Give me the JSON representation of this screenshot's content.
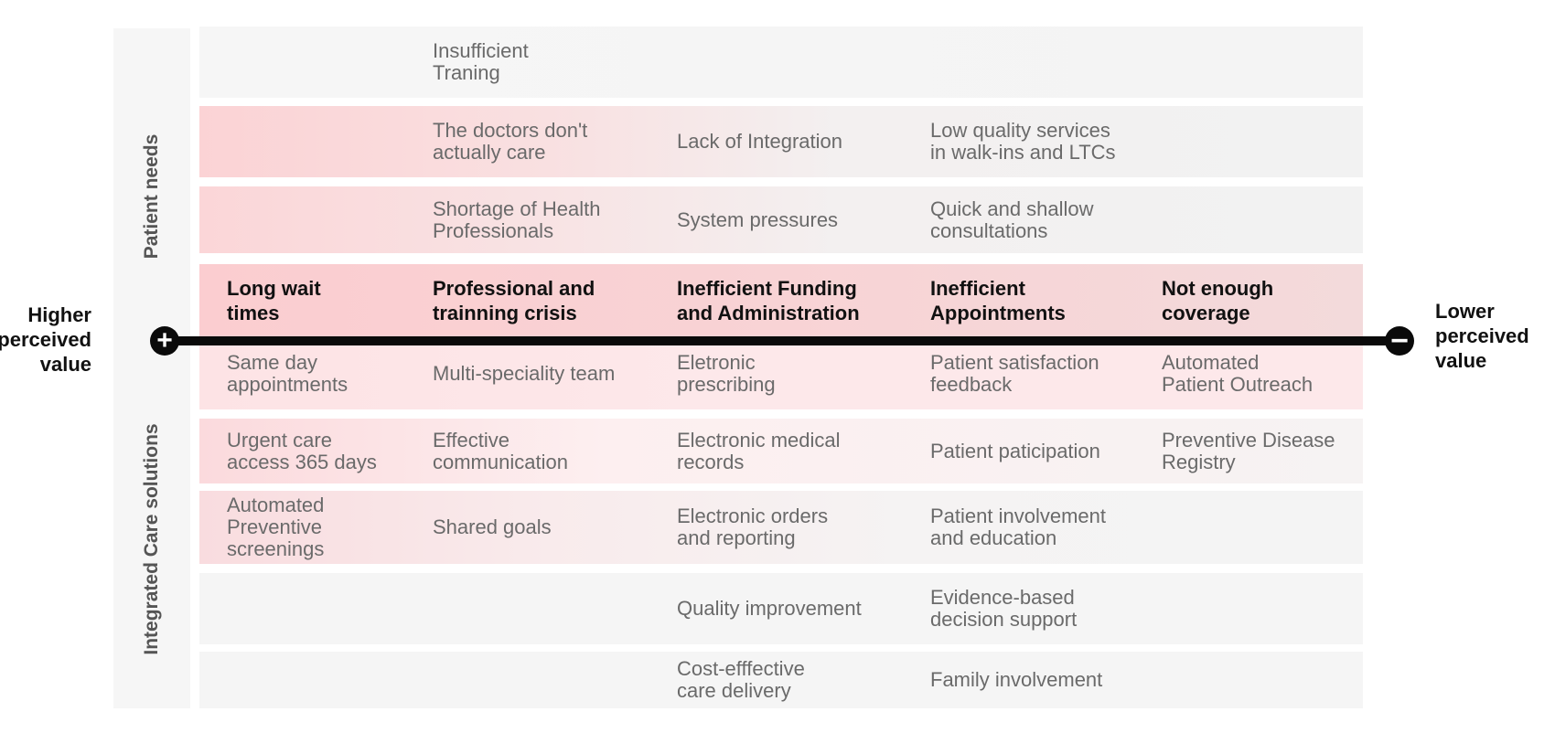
{
  "side_labels": {
    "top": "Patient needs",
    "bottom": "Integrated Care solutions"
  },
  "axis": {
    "left_label": "Higher\nperceived\nvalue",
    "right_label": "Lower\nperceived\nvalue",
    "left_symbol": "+",
    "right_symbol": "−"
  },
  "rows": [
    {
      "group": "needs",
      "cells": [
        "",
        "Insufficient\nTraning",
        "",
        "",
        ""
      ]
    },
    {
      "group": "needs",
      "cells": [
        "",
        "The doctors don't\nactually care",
        "Lack of Integration",
        "Low quality services\nin walk-ins and LTCs",
        ""
      ]
    },
    {
      "group": "needs",
      "cells": [
        "",
        "Shortage of Health\nProfessionals",
        "System pressures",
        "Quick and shallow\nconsultations",
        ""
      ]
    },
    {
      "group": "header",
      "cells": [
        "Long wait\ntimes",
        "Professional and\ntrainning crisis",
        "Inefficient Funding\nand Administration",
        "Inefficient\nAppointments",
        "Not enough\ncoverage"
      ]
    },
    {
      "group": "solutions",
      "cells": [
        "Same day\nappointments",
        "Multi-speciality team",
        "Eletronic\nprescribing",
        "Patient satisfaction\nfeedback",
        "Automated\nPatient Outreach"
      ]
    },
    {
      "group": "solutions",
      "cells": [
        "Urgent care\naccess 365 days",
        "Effective\ncommunication",
        "Electronic medical\nrecords",
        "Patient paticipation",
        "Preventive Disease\nRegistry"
      ]
    },
    {
      "group": "solutions",
      "cells": [
        "Automated\nPreventive\nscreenings",
        "Shared goals",
        "Electronic orders\nand reporting",
        "Patient involvement\nand education",
        ""
      ]
    },
    {
      "group": "solutions",
      "cells": [
        "",
        "",
        "Quality improvement",
        "Evidence-based\ndecision support",
        ""
      ]
    },
    {
      "group": "solutions",
      "cells": [
        "",
        "",
        "Cost-efffective\ncare delivery",
        "Family involvement",
        ""
      ]
    }
  ],
  "colors": {
    "accent": "#fbcdd0",
    "panel": "#f6f6f6",
    "axis": "#0a0a0a"
  }
}
